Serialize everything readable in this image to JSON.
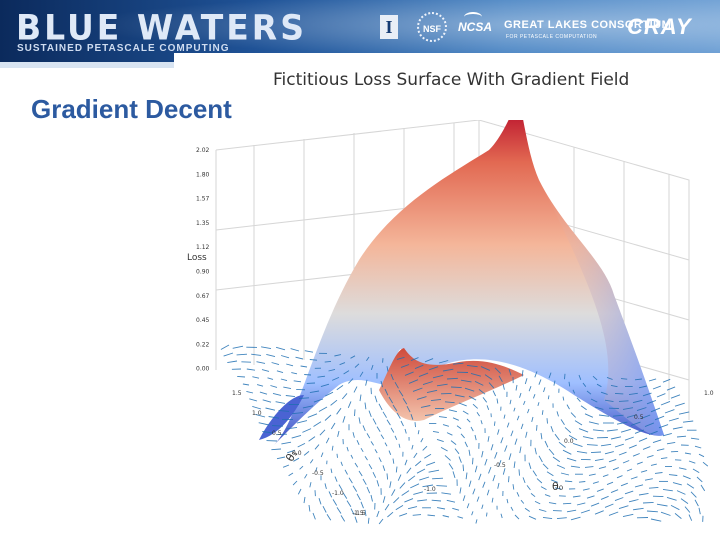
{
  "header": {
    "brand_title": "BLUE WATERS",
    "brand_subtitle": "SUSTAINED PETASCALE COMPUTING",
    "logos": {
      "illinois": "I",
      "nsf": "NSF",
      "ncsa": "NCSA",
      "great_lakes": "GREAT LAKES CONSORTIUM",
      "great_lakes_sub": "FOR PETASCALE COMPUTATION",
      "cray": "CRAY"
    }
  },
  "slide": {
    "title": "Gradient Decent"
  },
  "figure": {
    "title": "Fictitious Loss Surface With Gradient Field",
    "z_axis_label": "Loss",
    "z_ticks": [
      "2.02",
      "1.80",
      "1.57",
      "1.35",
      "1.12",
      "0.90",
      "0.67",
      "0.45",
      "0.22",
      "0.00"
    ],
    "x_axis_label": "θ₀",
    "y_axis_label": "θ₁",
    "x_ticks": [
      "-1.5",
      "-1.0",
      "-0.5",
      "0.0",
      "0.5",
      "1.0",
      "1.5"
    ],
    "y_ticks": [
      "1.5",
      "1.0",
      "0.5",
      "0.0",
      "-0.5",
      "-1.0",
      "-1.5"
    ],
    "colors": {
      "surface_high": "#b40426",
      "surface_mid": "#f2cbb7",
      "surface_low": "#3b4cc0",
      "arrows": "#1f6fb2"
    }
  }
}
